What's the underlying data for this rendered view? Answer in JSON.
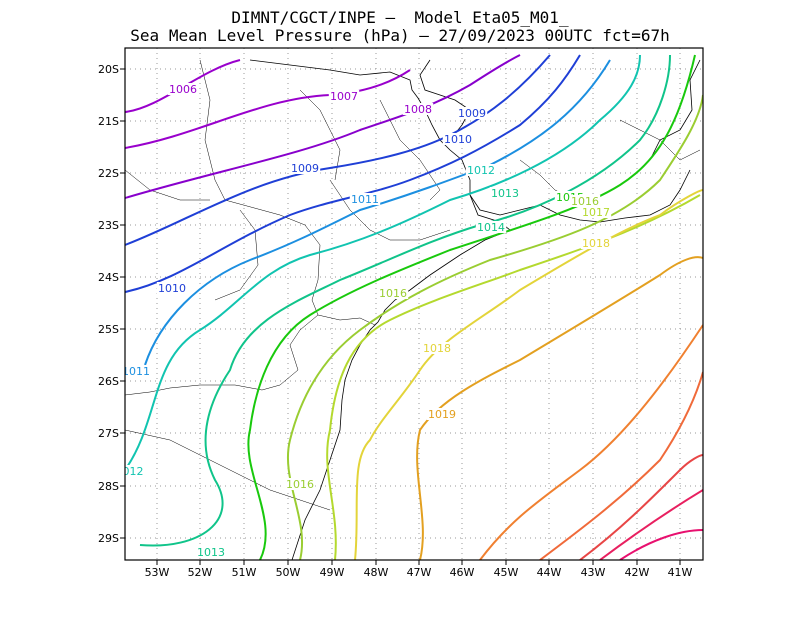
{
  "title_line1": "DIMNT/CGCT/INPE —  Model Eta05_M01_",
  "title_line2": "Sea Mean Level Pressure (hPa) — 27/09/2023 00UTC fct=67h",
  "lat_ticks": [
    "20S",
    "21S",
    "22S",
    "23S",
    "24S",
    "25S",
    "26S",
    "27S",
    "28S",
    "29S"
  ],
  "lon_ticks": [
    "53W",
    "52W",
    "51W",
    "50W",
    "49W",
    "48W",
    "47W",
    "46W",
    "45W",
    "44W",
    "43W",
    "42W",
    "41W"
  ],
  "contour_labels": [
    {
      "text": "1006",
      "color": "#9900cc"
    },
    {
      "text": "1007",
      "color": "#9900cc"
    },
    {
      "text": "1008",
      "color": "#9900cc"
    },
    {
      "text": "1009",
      "color": "#1f3fd6"
    },
    {
      "text": "1009",
      "color": "#1f3fd6"
    },
    {
      "text": "1010",
      "color": "#1f3fd6"
    },
    {
      "text": "1010",
      "color": "#1f3fd6"
    },
    {
      "text": "1011",
      "color": "#1c8fe0"
    },
    {
      "text": "1011",
      "color": "#1c8fe0"
    },
    {
      "text": "1012",
      "color": "#11c4b0"
    },
    {
      "text": "012",
      "color": "#11c4b0"
    },
    {
      "text": "1013",
      "color": "#10c48a"
    },
    {
      "text": "1013",
      "color": "#10c48a"
    },
    {
      "text": "1014",
      "color": "#10c48a"
    },
    {
      "text": "1015",
      "color": "#19c90d"
    },
    {
      "text": "1016",
      "color": "#9acd32"
    },
    {
      "text": "1016",
      "color": "#9acd32"
    },
    {
      "text": "1016",
      "color": "#9acd32"
    },
    {
      "text": "1017",
      "color": "#b4d92e"
    },
    {
      "text": "1018",
      "color": "#e3d43a"
    },
    {
      "text": "1018",
      "color": "#e3d43a"
    },
    {
      "text": "1019",
      "color": "#e3a020"
    }
  ]
}
